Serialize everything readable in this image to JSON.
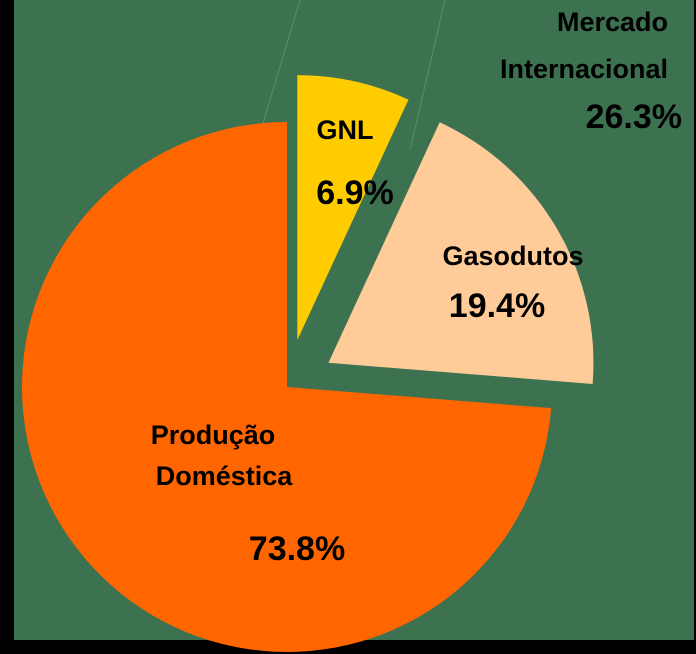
{
  "chart_data": {
    "type": "pie",
    "categories": [
      [
        "GNL"
      ],
      [
        "Gasodutos"
      ],
      [
        "Produção",
        "Doméstica"
      ]
    ],
    "values": [
      6.9,
      19.4,
      73.8
    ],
    "value_labels": [
      "6.9%",
      "19.4%",
      "73.8%"
    ],
    "colors": [
      "#ffcc00",
      "#ffcc99",
      "#ff6600"
    ],
    "explode": [
      true,
      true,
      false
    ],
    "annotation": {
      "text": [
        "Mercado",
        "Internacional"
      ],
      "value": 26.3,
      "value_label": "26.3%"
    }
  }
}
